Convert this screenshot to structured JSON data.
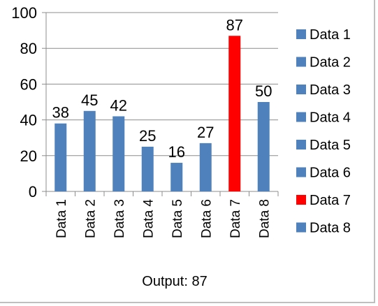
{
  "caption": "Output: 87",
  "chart_data": {
    "type": "bar",
    "title": "",
    "xlabel": "",
    "ylabel": "",
    "categories": [
      "Data 1",
      "Data 2",
      "Data 3",
      "Data 4",
      "Data 5",
      "Data 6",
      "Data 7",
      "Data 8"
    ],
    "values": [
      38,
      45,
      42,
      25,
      16,
      27,
      87,
      50
    ],
    "colors": [
      "#4f81bd",
      "#4f81bd",
      "#4f81bd",
      "#4f81bd",
      "#4f81bd",
      "#4f81bd",
      "#ff0000",
      "#4f81bd"
    ],
    "ylim": [
      0,
      100
    ],
    "yticks": [
      0,
      20,
      40,
      60,
      80,
      100
    ],
    "grid": true,
    "data_labels": true,
    "legend": {
      "position": "right",
      "entries": [
        "Data 1",
        "Data 2",
        "Data 3",
        "Data 4",
        "Data 5",
        "Data 6",
        "Data 7",
        "Data 8"
      ]
    }
  }
}
